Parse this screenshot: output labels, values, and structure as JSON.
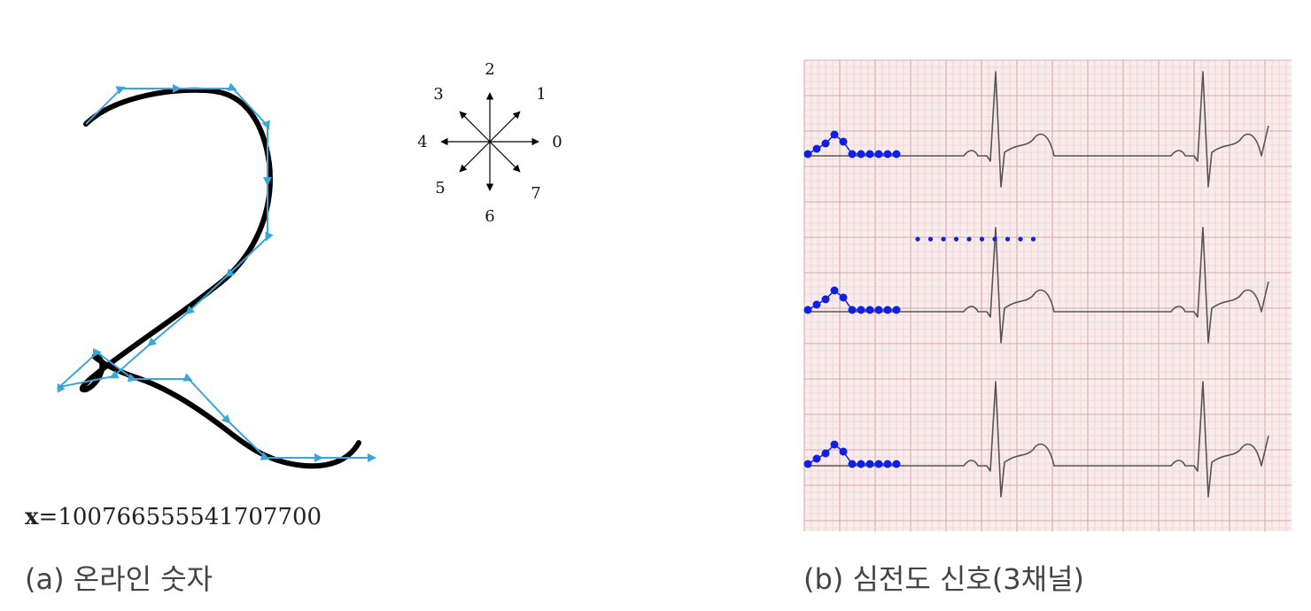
{
  "panel_a": {
    "code_prefix": "x",
    "code_equals": "=",
    "code_sequence": "100766555541707700",
    "caption": "(a) 온라인 숫자",
    "stroke_color": "#000000",
    "vector_color": "#3aa6d8"
  },
  "compass": {
    "labels": [
      "0",
      "1",
      "2",
      "3",
      "4",
      "5",
      "6",
      "7"
    ]
  },
  "panel_b": {
    "caption": "(b) 심전도 신호(3채널)",
    "grid_bg": "#f8ecec",
    "grid_minor": "#ecc6c8",
    "grid_major": "#dca8ab",
    "signal_color": "#555555",
    "marker_color": "#1020e0"
  }
}
